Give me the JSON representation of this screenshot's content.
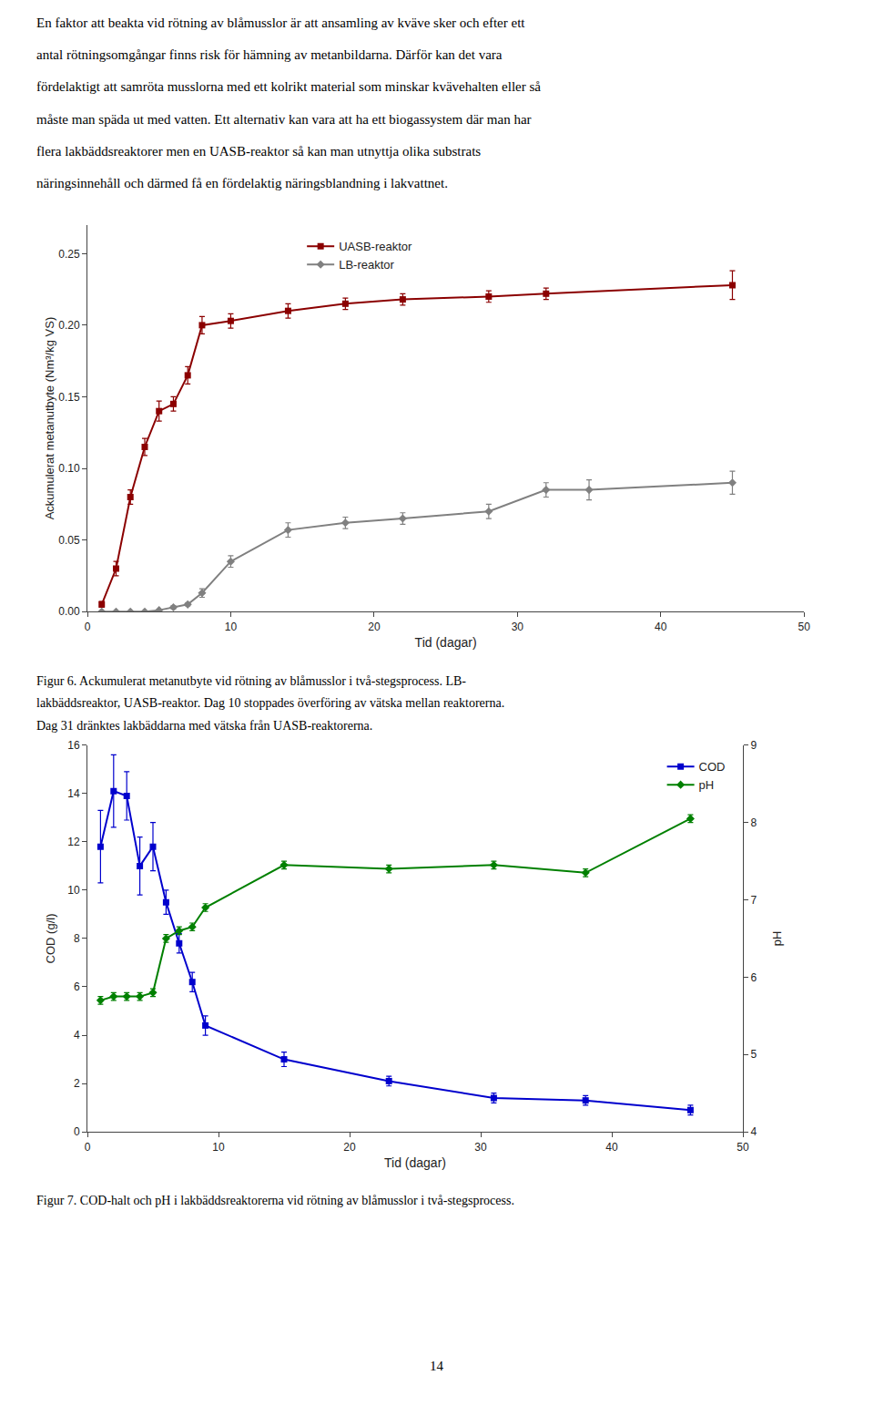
{
  "chart_data": [
    {
      "type": "line",
      "subtitle": [
        "En faktor att beakta vid rötning av blåmusslor är att ansamling av kväve sker och efter ett",
        "antal rötningsomgångar finns risk för hämning av metanbildarna. Därför kan det vara",
        "fördelaktigt att samröta musslorna med ett kolrikt material som minskar kvävehalten eller så",
        "måste man späda ut med vatten. Ett alternativ kan vara att ha ett biogassystem där man har",
        "flera lakbäddsreaktorer men en UASB-reaktor så kan man utnyttja olika substrats",
        "näringsinnehåll och därmed få en fördelaktig näringsblandning i lakvattnet."
      ],
      "xlabel": "Tid (dagar)",
      "ylabel": "Ackumulerat metanutbyte (Nm³/kg VS)",
      "xlim": [
        0,
        50
      ],
      "xticks": [
        0,
        10,
        20,
        30,
        40,
        50
      ],
      "ylim": [
        0,
        0.27
      ],
      "yticks": [
        {
          "value": 0,
          "label": "0.00"
        },
        0.05,
        {
          "value": 0.1,
          "label": "0.10"
        },
        0.15,
        {
          "value": 0.2,
          "label": "0.20"
        },
        0.25
      ],
      "grid": false,
      "legend": "upper left",
      "series": [
        {
          "name": "UASB-reaktor",
          "color": "#8B0000",
          "marker": "square",
          "line_style": "solid",
          "x": [
            1,
            2,
            3,
            4,
            5,
            6,
            7,
            8,
            10,
            14,
            18,
            22,
            28,
            32,
            45
          ],
          "values": [
            0.005,
            0.03,
            0.08,
            0.115,
            0.14,
            0.145,
            0.165,
            0.2,
            0.203,
            0.21,
            0.215,
            0.218,
            0.22,
            0.222,
            0.228
          ],
          "yerr": [
            0.002,
            0.005,
            0.005,
            0.006,
            0.007,
            0.005,
            0.006,
            0.006,
            0.005,
            0.005,
            0.004,
            0.004,
            0.004,
            0.004,
            0.01
          ]
        },
        {
          "name": "LB-reaktor",
          "color": "#808080",
          "marker": "diamond",
          "line_style": "solid",
          "x": [
            1,
            2,
            3,
            4,
            5,
            6,
            7,
            8,
            10,
            14,
            18,
            22,
            28,
            32,
            35,
            45
          ],
          "values": [
            0.0,
            0.0,
            0.0,
            0.0,
            0.001,
            0.003,
            0.005,
            0.013,
            0.035,
            0.057,
            0.062,
            0.065,
            0.07,
            0.085,
            0.085,
            0.09
          ],
          "yerr": [
            0.0,
            0.0,
            0.0,
            0.0,
            0.0,
            0.001,
            0.001,
            0.003,
            0.004,
            0.005,
            0.004,
            0.004,
            0.005,
            0.005,
            0.007,
            0.008
          ]
        }
      ],
      "annotations": [
        "Figur 6. Ackumulerat metanutbyte vid rötning av blåmusslor i två-stegsprocess. LB-",
        "lakbäddsreaktor, UASB-reaktor. Dag 10 stoppades överföring av vätska mellan reaktorerna.",
        "Dag 31 dränktes lakbäddarna med vätska från UASB-reaktorerna."
      ]
    },
    {
      "type": "line",
      "xlabel": "Tid (dagar)",
      "ylabel": "COD (g/l)",
      "y2label": "pH",
      "xlim": [
        0,
        50
      ],
      "xticks": [
        0,
        10,
        20,
        30,
        40,
        50
      ],
      "ylim": [
        0,
        16
      ],
      "yticks": [
        0,
        2,
        4,
        6,
        8,
        10,
        12,
        14,
        16
      ],
      "y2lim": [
        4,
        9
      ],
      "y2ticks": [
        4,
        5,
        6,
        7,
        8,
        9
      ],
      "grid": false,
      "legend": "upper right",
      "series": [
        {
          "name": "COD",
          "color": "#0000CD",
          "marker": "square",
          "line_style": "solid",
          "x": [
            1,
            2,
            3,
            4,
            5,
            6,
            7,
            8,
            9,
            15,
            23,
            31,
            38,
            46
          ],
          "values": [
            11.8,
            14.1,
            13.9,
            11.0,
            11.8,
            9.5,
            7.8,
            6.2,
            4.4,
            3.0,
            2.1,
            1.4,
            1.3,
            0.9
          ],
          "yerr": [
            1.5,
            1.5,
            1.0,
            1.2,
            1.0,
            0.5,
            0.4,
            0.4,
            0.4,
            0.3,
            0.2,
            0.2,
            0.2,
            0.2
          ]
        },
        {
          "name": "pH",
          "color": "#008000",
          "marker": "diamond",
          "line_style": "solid",
          "axis": "y2",
          "x": [
            1,
            2,
            3,
            4,
            5,
            6,
            7,
            8,
            9,
            15,
            23,
            31,
            38,
            46
          ],
          "values": [
            5.7,
            5.75,
            5.75,
            5.75,
            5.8,
            6.5,
            6.6,
            6.65,
            6.9,
            7.45,
            7.4,
            7.45,
            7.35,
            8.05
          ],
          "yerr": [
            0.05,
            0.05,
            0.05,
            0.05,
            0.05,
            0.05,
            0.05,
            0.05,
            0.05,
            0.05,
            0.05,
            0.05,
            0.05,
            0.05
          ]
        }
      ],
      "annotations": [
        "Figur 7. COD-halt och pH i lakbäddsreaktorerna vid rötning av blåmusslor i två-stegsprocess.",
        "14"
      ]
    }
  ]
}
